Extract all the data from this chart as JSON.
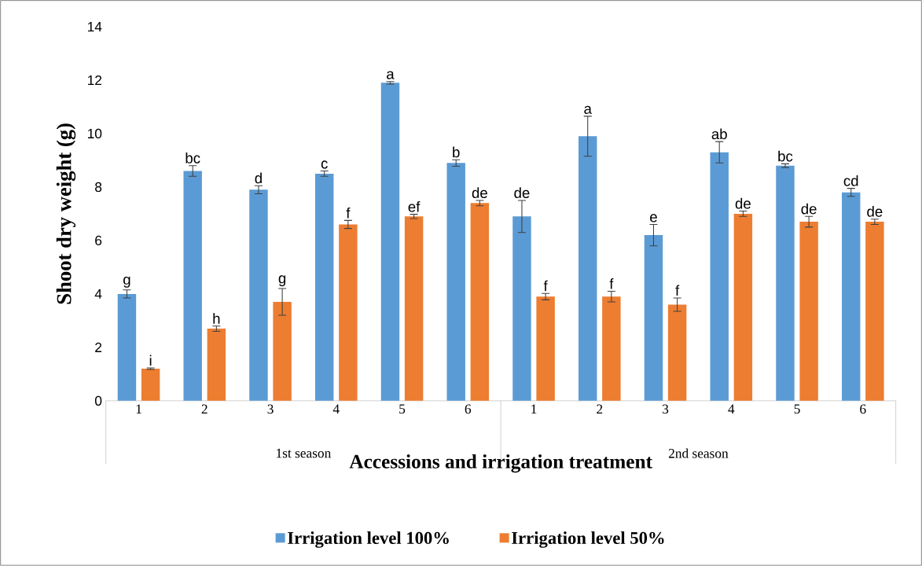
{
  "chart_data": {
    "type": "bar",
    "categories": [
      "1",
      "2",
      "3",
      "4",
      "5",
      "6",
      "1",
      "2",
      "3",
      "4",
      "5",
      "6"
    ],
    "series": [
      {
        "name": "Irrigation level 100%",
        "color": "#5b9bd5",
        "values": [
          4.0,
          8.6,
          7.9,
          8.5,
          11.9,
          8.9,
          6.9,
          9.9,
          6.2,
          9.3,
          8.8,
          7.8
        ],
        "errors": [
          0.15,
          0.2,
          0.15,
          0.1,
          0.05,
          0.12,
          0.6,
          0.75,
          0.4,
          0.4,
          0.07,
          0.15
        ],
        "value_labels": [
          "g",
          "bc",
          "d",
          "c",
          "a",
          "b",
          "de",
          "a",
          "e",
          "ab",
          "bc",
          "cd"
        ]
      },
      {
        "name": "Irrigation level 50%",
        "color": "#ed7d31",
        "values": [
          1.2,
          2.7,
          3.7,
          6.6,
          6.9,
          7.4,
          3.9,
          3.9,
          3.6,
          7.0,
          6.7,
          6.7
        ],
        "errors": [
          0.03,
          0.1,
          0.5,
          0.15,
          0.08,
          0.1,
          0.12,
          0.2,
          0.25,
          0.1,
          0.2,
          0.1
        ],
        "value_labels": [
          "i",
          "h",
          "g",
          "f",
          "ef",
          "de",
          "f",
          "f",
          "f",
          "de",
          "de",
          "de"
        ]
      }
    ],
    "ylabel": "Shoot dry weight (g)",
    "xlabel": "Accessions and irrigation treatment",
    "annotations": [
      "1st season",
      "2nd season"
    ],
    "ylim": [
      0,
      14
    ],
    "yticks": [
      0,
      2,
      4,
      6,
      8,
      10,
      12,
      14
    ],
    "legend": "bottom"
  }
}
